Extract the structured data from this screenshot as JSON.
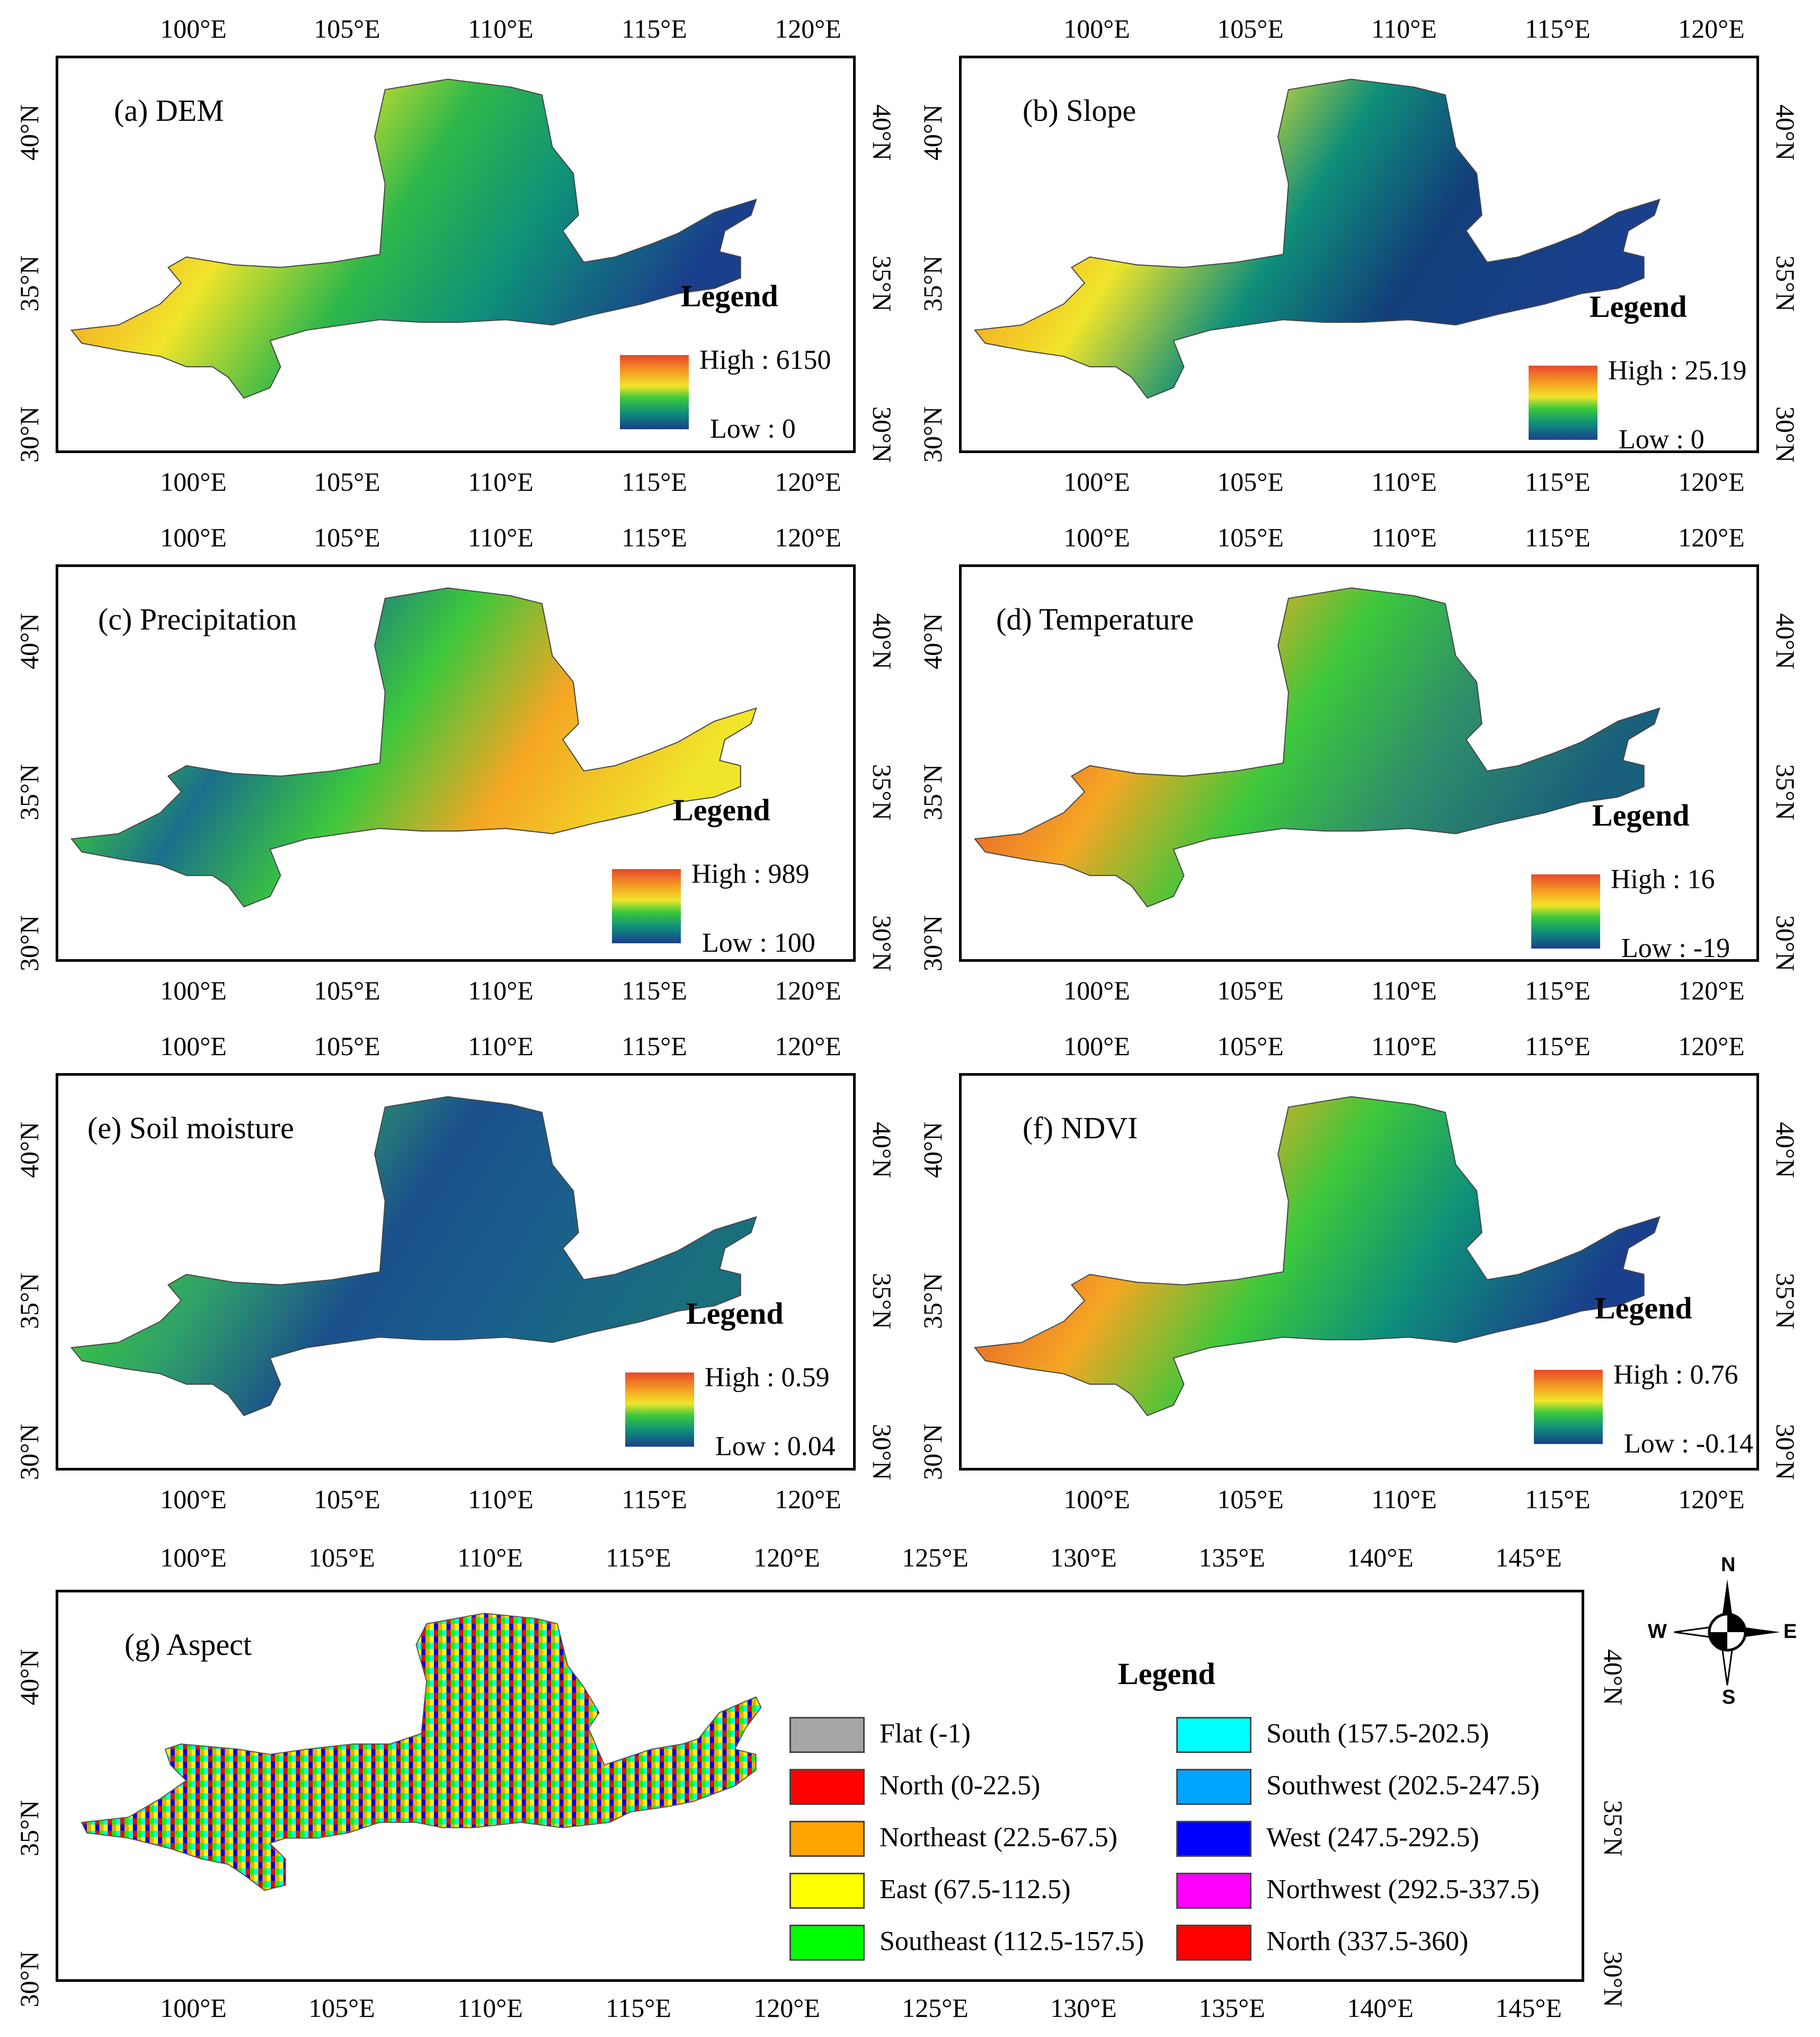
{
  "lon_ticks_small": [
    "100°E",
    "105°E",
    "110°E",
    "115°E",
    "120°E"
  ],
  "lat_ticks": [
    "40°N",
    "35°N",
    "30°N"
  ],
  "lon_ticks_wide": [
    "100°E",
    "105°E",
    "110°E",
    "115°E",
    "120°E",
    "125°E",
    "130°E",
    "135°E",
    "140°E",
    "145°E"
  ],
  "legend_title": "Legend",
  "panels": {
    "a": {
      "title": "(a) DEM",
      "high": "High : 6150",
      "low": "Low : 0"
    },
    "b": {
      "title": "(b) Slope",
      "high": "High : 25.19",
      "low": "Low : 0"
    },
    "c": {
      "title": "(c) Precipitation",
      "high": "High : 989",
      "low": "Low : 100"
    },
    "d": {
      "title": "(d) Temperature",
      "high": "High : 16",
      "low": "Low : -19"
    },
    "e": {
      "title": "(e) Soil moisture",
      "high": "High : 0.59",
      "low": "Low : 0.04"
    },
    "f": {
      "title": "(f) NDVI",
      "high": "High : 0.76",
      "low": "Low : -0.14"
    },
    "g": {
      "title": "(g) Aspect"
    }
  },
  "aspect_classes": [
    {
      "label": "Flat (-1)",
      "color": "#a6a6a6"
    },
    {
      "label": "North (0-22.5)",
      "color": "#ff0000"
    },
    {
      "label": "Northeast (22.5-67.5)",
      "color": "#ffa500"
    },
    {
      "label": "East (67.5-112.5)",
      "color": "#ffff00"
    },
    {
      "label": "Southeast (112.5-157.5)",
      "color": "#00ff00"
    },
    {
      "label": "South (157.5-202.5)",
      "color": "#00ffff"
    },
    {
      "label": "Southwest (202.5-247.5)",
      "color": "#00a5ff"
    },
    {
      "label": "West (247.5-292.5)",
      "color": "#0000ff"
    },
    {
      "label": "Northwest (292.5-337.5)",
      "color": "#ff00ff"
    },
    {
      "label": "North (337.5-360)",
      "color": "#ff0000"
    }
  ],
  "compass": {
    "n": "N",
    "s": "S",
    "e": "E",
    "w": "W"
  },
  "colors": {
    "dem": [
      "#1a3f8c",
      "#0f8f7a",
      "#3cc83c",
      "#f0e52a",
      "#f5a623",
      "#e8472a"
    ],
    "accent_low": "#1a3f8c",
    "accent_high": "#e8472a"
  }
}
